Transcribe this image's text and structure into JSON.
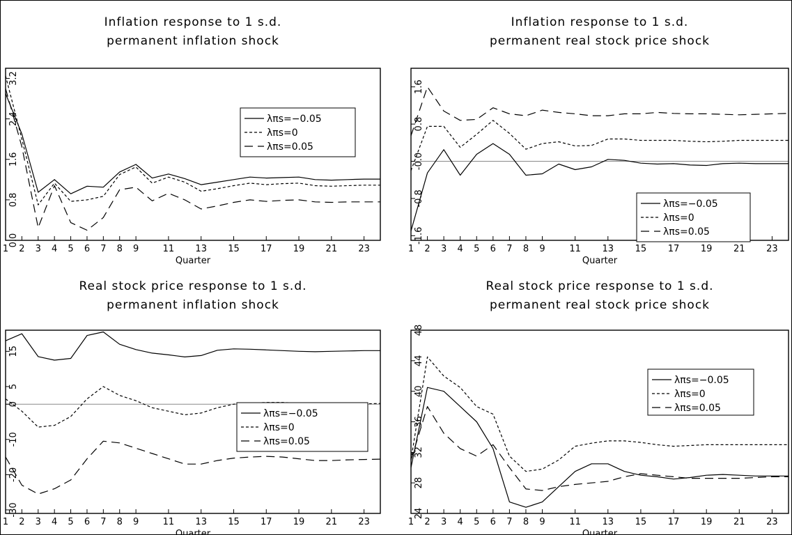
{
  "chart_data": [
    {
      "type": "line",
      "title": [
        "Inflation response to 1 s.d.",
        "permanent inflation shock"
      ],
      "xlabel": "Quarter",
      "ylabel": "",
      "xlim": [
        1,
        24
      ],
      "ylim": [
        0,
        3.4
      ],
      "x_ticks": [
        "1",
        "2",
        "3",
        "4",
        "5",
        "6",
        "7",
        "8",
        "9",
        "11",
        "13",
        "15",
        "17",
        "19",
        "21",
        "23"
      ],
      "y_ticks": [
        "0.0",
        "0.8",
        "1.6",
        "2.4",
        "3.2"
      ],
      "y_tick_values": [
        0,
        0.8,
        1.6,
        2.4,
        3.2
      ],
      "zero_line": false,
      "legend_position": "upper-right",
      "legend": [
        "λπs=−0.05",
        "λπs=0",
        "λπs=0.05"
      ],
      "x": [
        1,
        2,
        3,
        4,
        5,
        6,
        7,
        8,
        9,
        10,
        11,
        12,
        13,
        14,
        15,
        16,
        17,
        18,
        19,
        20,
        21,
        22,
        23,
        24
      ],
      "series": [
        {
          "style": "solid",
          "values": [
            2.9,
            2.1,
            0.95,
            1.2,
            0.92,
            1.07,
            1.05,
            1.35,
            1.5,
            1.23,
            1.31,
            1.22,
            1.1,
            1.15,
            1.2,
            1.25,
            1.23,
            1.24,
            1.25,
            1.2,
            1.19,
            1.2,
            1.21,
            1.21
          ]
        },
        {
          "style": "short-dash",
          "values": [
            3.25,
            2.0,
            0.7,
            1.13,
            0.77,
            0.8,
            0.87,
            1.3,
            1.45,
            1.13,
            1.25,
            1.15,
            0.97,
            1.02,
            1.08,
            1.13,
            1.1,
            1.12,
            1.13,
            1.08,
            1.07,
            1.08,
            1.09,
            1.09
          ]
        },
        {
          "style": "long-dash",
          "values": [
            3.0,
            1.85,
            0.25,
            1.08,
            0.35,
            0.2,
            0.45,
            1.0,
            1.05,
            0.78,
            0.93,
            0.8,
            0.62,
            0.68,
            0.75,
            0.8,
            0.77,
            0.79,
            0.8,
            0.76,
            0.75,
            0.76,
            0.76,
            0.76
          ]
        }
      ]
    },
    {
      "type": "line",
      "title": [
        "Inflation response to 1 s.d.",
        "permanent real stock price shock"
      ],
      "xlabel": "Quarter",
      "ylabel": "",
      "xlim": [
        1,
        24
      ],
      "ylim": [
        -1.7,
        2.0
      ],
      "x_ticks": [
        "1",
        "2",
        "3",
        "4",
        "5",
        "6",
        "7",
        "8",
        "9",
        "11",
        "13",
        "15",
        "17",
        "19",
        "21",
        "23"
      ],
      "y_ticks": [
        "-1.6",
        "-0.8",
        "-0.0",
        "0.8",
        "1.6"
      ],
      "y_tick_values": [
        -1.6,
        -0.8,
        0,
        0.8,
        1.6
      ],
      "zero_line": true,
      "legend_position": "lower-right",
      "legend": [
        "λπs=−0.05",
        "λπs=0",
        "λπs=0.05"
      ],
      "x": [
        1,
        2,
        3,
        4,
        5,
        6,
        7,
        8,
        9,
        10,
        11,
        12,
        13,
        14,
        15,
        16,
        17,
        18,
        19,
        20,
        21,
        22,
        23,
        24
      ],
      "series": [
        {
          "style": "solid",
          "values": [
            -1.5,
            -0.25,
            0.25,
            -0.3,
            0.15,
            0.38,
            0.15,
            -0.3,
            -0.27,
            -0.06,
            -0.18,
            -0.12,
            0.04,
            0.02,
            -0.04,
            -0.06,
            -0.05,
            -0.08,
            -0.09,
            -0.05,
            -0.04,
            -0.05,
            -0.05,
            -0.05
          ]
        },
        {
          "style": "short-dash",
          "values": [
            -0.2,
            0.75,
            0.75,
            0.3,
            0.58,
            0.88,
            0.6,
            0.26,
            0.38,
            0.42,
            0.33,
            0.34,
            0.48,
            0.48,
            0.45,
            0.45,
            0.45,
            0.43,
            0.42,
            0.43,
            0.45,
            0.45,
            0.45,
            0.45
          ]
        },
        {
          "style": "long-dash",
          "values": [
            0.55,
            1.6,
            1.08,
            0.88,
            0.9,
            1.15,
            1.02,
            0.98,
            1.1,
            1.05,
            1.02,
            0.98,
            0.98,
            1.02,
            1.02,
            1.05,
            1.03,
            1.02,
            1.02,
            1.01,
            1.0,
            1.01,
            1.02,
            1.03
          ]
        }
      ]
    },
    {
      "type": "line",
      "title": [
        "Real stock price response to 1 s.d.",
        "permanent inflation shock"
      ],
      "xlabel": "Quarter",
      "ylabel": "",
      "xlim": [
        1,
        24
      ],
      "ylim": [
        -31,
        21
      ],
      "x_ticks": [
        "1",
        "2",
        "3",
        "4",
        "5",
        "6",
        "7",
        "8",
        "9",
        "11",
        "13",
        "15",
        "17",
        "19",
        "21",
        "23"
      ],
      "y_ticks": [
        "-30",
        "-20",
        "-10",
        "0",
        "5",
        "15"
      ],
      "y_tick_values": [
        -30,
        -20,
        -10,
        0,
        5,
        15
      ],
      "zero_line": true,
      "legend_position": "center-right",
      "legend": [
        "λπs=−0.05",
        "λπs=0",
        "λπs=0.05"
      ],
      "x": [
        1,
        2,
        3,
        4,
        5,
        6,
        7,
        8,
        9,
        10,
        11,
        12,
        13,
        14,
        15,
        16,
        17,
        18,
        19,
        20,
        21,
        22,
        23,
        24
      ],
      "series": [
        {
          "style": "solid",
          "values": [
            18,
            20,
            13.5,
            12.5,
            13,
            19.5,
            20.5,
            17,
            15.5,
            14.5,
            14,
            13.4,
            13.8,
            15.3,
            15.7,
            15.6,
            15.4,
            15.2,
            15,
            14.9,
            15,
            15.1,
            15.2,
            15.2
          ]
        },
        {
          "style": "short-dash",
          "values": [
            1.5,
            -2,
            -6.5,
            -6,
            -3.5,
            1.5,
            5,
            2.5,
            1,
            -1,
            -2,
            -3,
            -2.5,
            -1,
            0,
            0.3,
            0.5,
            0.5,
            0.3,
            0,
            -0.2,
            0,
            0.1,
            0.2
          ]
        },
        {
          "style": "long-dash",
          "values": [
            -15,
            -23,
            -25.5,
            -24,
            -21.5,
            -15.5,
            -10.5,
            -11,
            -12.5,
            -14,
            -15.5,
            -17,
            -17,
            -16,
            -15.3,
            -15,
            -14.8,
            -15,
            -15.5,
            -16,
            -16,
            -15.8,
            -15.7,
            -15.6
          ]
        }
      ]
    },
    {
      "type": "line",
      "title": [
        "Real stock price response to 1 s.d.",
        "permanent real stock price shock"
      ],
      "xlabel": "Quarter",
      "ylabel": "",
      "xlim": [
        1,
        24
      ],
      "ylim": [
        24,
        48
      ],
      "x_ticks": [
        "1",
        "2",
        "3",
        "4",
        "5",
        "6",
        "7",
        "8",
        "9",
        "11",
        "13",
        "15",
        "17",
        "19",
        "21",
        "23"
      ],
      "y_ticks": [
        "24",
        "28",
        "32",
        "36",
        "40",
        "44",
        "48"
      ],
      "y_tick_values": [
        24,
        28,
        32,
        36,
        40,
        44,
        48
      ],
      "zero_line": false,
      "legend_position": "upper-right",
      "legend": [
        "λπs=−0.05",
        "λπs=0",
        "λπs=0.05"
      ],
      "x": [
        1,
        2,
        3,
        4,
        5,
        6,
        7,
        8,
        9,
        10,
        11,
        12,
        13,
        14,
        15,
        16,
        17,
        18,
        19,
        20,
        21,
        22,
        23,
        24
      ],
      "series": [
        {
          "style": "solid",
          "values": [
            30,
            40.5,
            40,
            38,
            36,
            32.5,
            25.5,
            24.8,
            25.5,
            27.5,
            29.5,
            30.5,
            30.5,
            29.5,
            29,
            28.8,
            28.5,
            28.7,
            29,
            29.1,
            29,
            28.9,
            28.9,
            28.9
          ]
        },
        {
          "style": "short-dash",
          "values": [
            31,
            44.5,
            42,
            40.5,
            38,
            37,
            31.5,
            29.5,
            29.8,
            31,
            32.8,
            33.2,
            33.5,
            33.5,
            33.3,
            33,
            32.8,
            32.9,
            33,
            33,
            33,
            33,
            33,
            33
          ]
        },
        {
          "style": "long-dash",
          "values": [
            31,
            38,
            34.5,
            32.5,
            31.5,
            33,
            30,
            27.2,
            27,
            27.5,
            27.8,
            28,
            28.2,
            28.8,
            29.2,
            29,
            28.8,
            28.6,
            28.6,
            28.6,
            28.6,
            28.7,
            28.8,
            28.8
          ]
        }
      ]
    }
  ]
}
